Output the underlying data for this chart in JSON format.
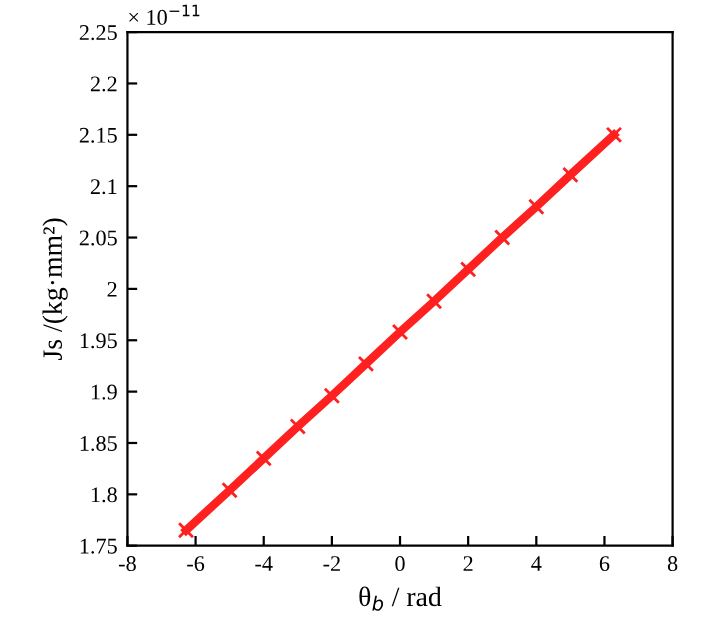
{
  "chart_data": {
    "type": "line",
    "xlabel": "θ$_{b}$ / rad",
    "ylabel": "Js /(kg·mm²)",
    "annotations": [
      "× 10$^{−11}$"
    ],
    "x": [
      -6.28,
      -5,
      -4,
      -3,
      -2,
      -1,
      0,
      1,
      2,
      3,
      4,
      5,
      6.28
    ],
    "series": [
      {
        "color": "#ff2020",
        "values": [
          1.765,
          1.804,
          1.835,
          1.866,
          1.896,
          1.927,
          1.958,
          1.988,
          2.019,
          2.05,
          2.08,
          2.111,
          2.15
        ]
      }
    ],
    "marker": "cross",
    "line_style": "solid",
    "grid": false,
    "legend": false,
    "xlim": [
      -8,
      8
    ],
    "xticks": [
      -8,
      -6,
      -4,
      -2,
      0,
      2,
      4,
      6,
      8
    ],
    "ylim": [
      1.75,
      2.25
    ],
    "yticks": [
      1.75,
      1.8,
      1.85,
      1.9,
      1.95,
      2,
      2.05,
      2.1,
      2.15,
      2.2,
      2.25
    ]
  }
}
